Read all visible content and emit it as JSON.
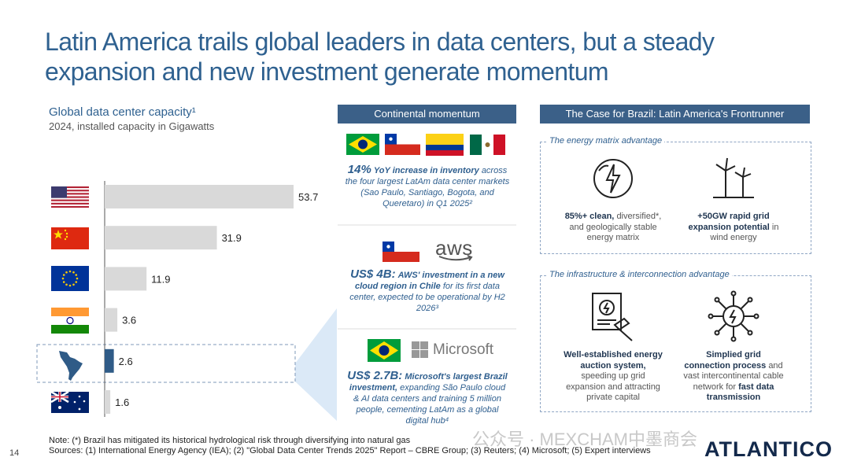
{
  "title": [
    "Latin America trails global leaders in data centers, but a steady",
    "expansion and new investment generate momentum"
  ],
  "chart_data": {
    "type": "bar",
    "orientation": "horizontal",
    "title": "Global data center capacity¹",
    "subtitle": "2024, installed capacity in Gigawatts",
    "categories": [
      null,
      null,
      null,
      null,
      null,
      null
    ],
    "values": [
      53.7,
      31.9,
      11.9,
      3.6,
      2.6,
      1.6
    ],
    "colors": [
      "#d9d9d9",
      "#d9d9d9",
      "#d9d9d9",
      "#d9d9d9",
      "#2f5b87",
      "#d9d9d9"
    ]
  },
  "continental": {
    "header": "Continental momentum",
    "items": [
      {
        "text": [
          "14%",
          "YoY increase in inventory",
          "across the four largest LatAm data center markets (Sao Paulo, Santiago, Bogota, and Queretaro) in Q1 2025²"
        ]
      },
      {
        "logo": "aws",
        "text": [
          "US$ 4B:",
          "AWS' investment in a new cloud region in Chile",
          "for its first data center, expected to be operational by H2 2026³"
        ]
      },
      {
        "logo": "Microsoft",
        "text": [
          "US$ 2.7B:",
          "Microsoft's largest Brazil investment,",
          "expanding São Paulo cloud & AI data centers and training 5 million people, cementing LatAm as a global digital hub⁴"
        ]
      }
    ]
  },
  "brazil": {
    "header": "The Case for Brazil: Latin America's Frontrunner",
    "boxes": [
      {
        "label": "The energy matrix advantage",
        "items": [
          [
            "85%+ clean,",
            "diversified*, and geologically stable energy matrix"
          ],
          [
            "+50GW rapid grid expansion potential",
            "in wind energy"
          ]
        ]
      },
      {
        "label": "The infrastructure & interconnection advantage",
        "items": [
          [
            "Well-established energy auction system,",
            "speeding up grid expansion and attracting private capital"
          ],
          [
            "Simplied grid connection process",
            "and vast intercontinental cable network for",
            "fast data transmission"
          ]
        ]
      }
    ]
  },
  "footer": {
    "note": "Note: (*) Brazil has mitigated its historical hydrological risk through diversifying into natural gas",
    "sources": "Sources: (1) International Energy Agency (IEA); (2) \"Global Data Center Trends 2025\" Report – CBRE Group; (3) Reuters; (4) Microsoft; (5) Expert interviews",
    "page": "14",
    "logo": "ATLANTICO",
    "watermark": "公众号 · MEXCHAM中墨商会"
  }
}
